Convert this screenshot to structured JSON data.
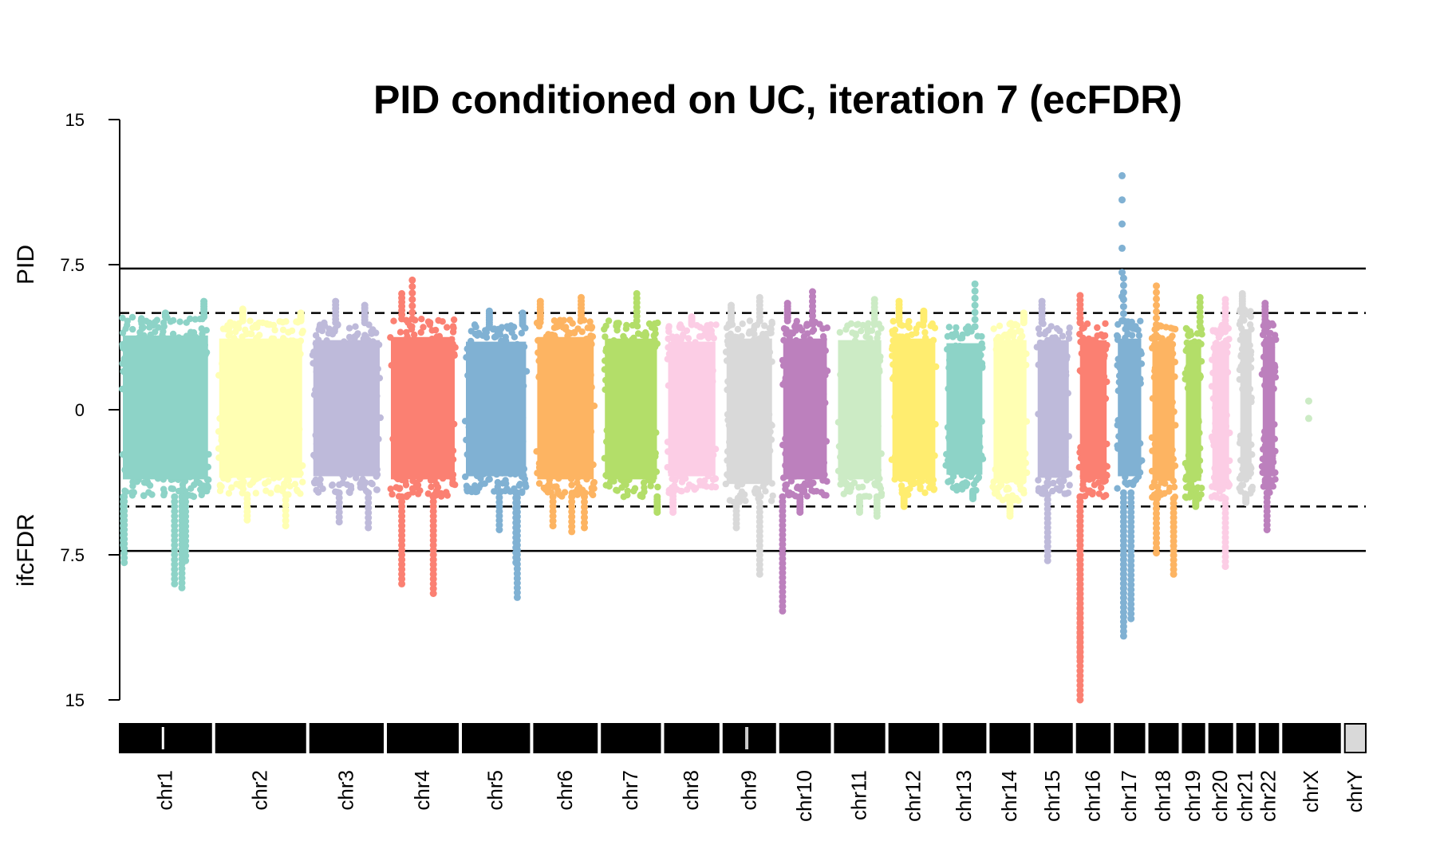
{
  "chart_data": {
    "type": "scatter",
    "title": "PID conditioned on UC, iteration 7 (ecFDR)",
    "ylabel_top": "PID",
    "ylabel_bottom": "ifcFDR",
    "yticks": [
      {
        "value": 15,
        "label": "15"
      },
      {
        "value": 7.5,
        "label": "7.5"
      },
      {
        "value": 0,
        "label": "0"
      },
      {
        "value": -7.5,
        "label": "7.5"
      },
      {
        "value": -15,
        "label": "15"
      }
    ],
    "ylim": [
      -15,
      15
    ],
    "thresholds": {
      "solid": [
        7.3,
        -7.3
      ],
      "dashed": [
        5,
        -5
      ]
    },
    "palette": [
      "#8dd3c7",
      "#ffffb3",
      "#bebada",
      "#fb8072",
      "#80b1d3",
      "#fdb462",
      "#b3de69",
      "#fccde5",
      "#d9d9d9",
      "#bc80bd",
      "#ccebc5",
      "#ffed6f"
    ],
    "chromosomes": [
      {
        "name": "chr1",
        "size": 249,
        "color": "#8dd3c7",
        "top": 4.8,
        "bottom": 4.5,
        "peaks_up": [
          [
            0.5,
            5.0
          ],
          [
            0.92,
            5.6
          ]
        ],
        "peaks_down": [
          [
            0.04,
            -7.0
          ],
          [
            0.05,
            -7.9
          ],
          [
            0.6,
            -9.0
          ],
          [
            0.68,
            -9.2
          ],
          [
            0.72,
            -7.8
          ]
        ]
      },
      {
        "name": "chr2",
        "size": 243,
        "color": "#ffffb3",
        "top": 4.6,
        "bottom": 4.4,
        "peaks_up": [
          [
            0.3,
            5.2
          ],
          [
            0.95,
            5.0
          ]
        ],
        "peaks_down": [
          [
            0.35,
            -5.7
          ],
          [
            0.78,
            -6.0
          ]
        ]
      },
      {
        "name": "chr3",
        "size": 198,
        "color": "#bebada",
        "top": 4.5,
        "bottom": 4.3,
        "peaks_up": [
          [
            0.35,
            5.6
          ],
          [
            0.75,
            5.4
          ]
        ],
        "peaks_down": [
          [
            0.4,
            -5.8
          ],
          [
            0.8,
            -6.1
          ]
        ]
      },
      {
        "name": "chr4",
        "size": 191,
        "color": "#fb8072",
        "top": 4.7,
        "bottom": 4.5,
        "peaks_up": [
          [
            0.2,
            6.0
          ],
          [
            0.35,
            6.7
          ]
        ],
        "peaks_down": [
          [
            0.2,
            -9.0
          ],
          [
            0.65,
            -9.5
          ]
        ]
      },
      {
        "name": "chr5",
        "size": 181,
        "color": "#80b1d3",
        "top": 4.4,
        "bottom": 4.3,
        "peaks_up": [
          [
            0.4,
            5.1
          ],
          [
            0.9,
            5.0
          ]
        ],
        "peaks_down": [
          [
            0.55,
            -6.2
          ],
          [
            0.8,
            -7.9
          ],
          [
            0.82,
            -9.7
          ]
        ]
      },
      {
        "name": "chr6",
        "size": 171,
        "color": "#fdb462",
        "top": 4.7,
        "bottom": 4.5,
        "peaks_up": [
          [
            0.1,
            5.6
          ],
          [
            0.75,
            5.8
          ]
        ],
        "peaks_down": [
          [
            0.3,
            -6.0
          ],
          [
            0.6,
            -6.3
          ],
          [
            0.8,
            -6.1
          ]
        ]
      },
      {
        "name": "chr7",
        "size": 159,
        "color": "#b3de69",
        "top": 4.6,
        "bottom": 4.5,
        "peaks_up": [
          [
            0.6,
            6.0
          ]
        ],
        "peaks_down": [
          [
            0.95,
            -5.3
          ]
        ]
      },
      {
        "name": "chr8",
        "size": 146,
        "color": "#fccde5",
        "top": 4.4,
        "bottom": 4.3,
        "peaks_up": [
          [
            0.5,
            4.8
          ]
        ],
        "peaks_down": [
          [
            0.15,
            -5.3
          ]
        ]
      },
      {
        "name": "chr9",
        "size": 141,
        "color": "#d9d9d9",
        "top": 4.6,
        "bottom": 4.8,
        "peaks_up": [
          [
            0.15,
            5.4
          ],
          [
            0.7,
            5.8
          ]
        ],
        "peaks_down": [
          [
            0.25,
            -6.1
          ],
          [
            0.7,
            -8.5
          ]
        ]
      },
      {
        "name": "chr10",
        "size": 136,
        "color": "#bc80bd",
        "top": 4.6,
        "bottom": 4.5,
        "peaks_up": [
          [
            0.15,
            5.5
          ],
          [
            0.65,
            6.1
          ]
        ],
        "peaks_down": [
          [
            0.05,
            -10.4
          ],
          [
            0.4,
            -5.3
          ]
        ]
      },
      {
        "name": "chr11",
        "size": 135,
        "color": "#ccebc5",
        "top": 4.5,
        "bottom": 4.5,
        "peaks_up": [
          [
            0.8,
            5.7
          ]
        ],
        "peaks_down": [
          [
            0.5,
            -5.3
          ],
          [
            0.85,
            -5.5
          ]
        ]
      },
      {
        "name": "chr12",
        "size": 134,
        "color": "#ffed6f",
        "top": 4.6,
        "bottom": 4.5,
        "peaks_up": [
          [
            0.2,
            5.6
          ],
          [
            0.7,
            5.1
          ]
        ],
        "peaks_down": [
          [
            0.3,
            -5.0
          ]
        ]
      },
      {
        "name": "chr13",
        "size": 115,
        "color": "#8dd3c7",
        "top": 4.3,
        "bottom": 4.2,
        "peaks_up": [
          [
            0.75,
            6.5
          ]
        ],
        "peaks_down": [
          [
            0.7,
            -4.6
          ]
        ]
      },
      {
        "name": "chr14",
        "size": 107,
        "color": "#ffffb3",
        "top": 4.5,
        "bottom": 4.7,
        "peaks_up": [
          [
            0.85,
            5.0
          ]
        ],
        "peaks_down": [
          [
            0.5,
            -5.5
          ]
        ]
      },
      {
        "name": "chr15",
        "size": 102,
        "color": "#bebada",
        "top": 4.5,
        "bottom": 4.4,
        "peaks_up": [
          [
            0.2,
            5.6
          ]
        ],
        "peaks_down": [
          [
            0.35,
            -7.8
          ]
        ]
      },
      {
        "name": "chr16",
        "size": 90,
        "color": "#fb8072",
        "top": 4.5,
        "bottom": 4.5,
        "peaks_up": [
          [
            0.1,
            5.9
          ]
        ],
        "peaks_down": [
          [
            0.1,
            -12.8
          ],
          [
            0.1,
            -15.0
          ]
        ]
      },
      {
        "name": "chr17",
        "size": 81,
        "color": "#80b1d3",
        "top": 4.6,
        "bottom": 4.3,
        "peaks_up": [
          [
            0.25,
            12.1
          ],
          [
            0.3,
            6.8
          ]
        ],
        "peaks_down": [
          [
            0.3,
            -11.7
          ],
          [
            0.55,
            -10.8
          ]
        ]
      },
      {
        "name": "chr18",
        "size": 78,
        "color": "#fdb462",
        "top": 4.4,
        "bottom": 4.6,
        "peaks_up": [
          [
            0.25,
            6.4
          ]
        ],
        "peaks_down": [
          [
            0.25,
            -7.4
          ],
          [
            0.85,
            -8.5
          ]
        ]
      },
      {
        "name": "chr19",
        "size": 59,
        "color": "#b3de69",
        "top": 4.3,
        "bottom": 4.6,
        "peaks_up": [
          [
            0.8,
            5.8
          ]
        ],
        "peaks_down": [
          [
            0.6,
            -5.0
          ]
        ]
      },
      {
        "name": "chr20",
        "size": 63,
        "color": "#fccde5",
        "top": 4.4,
        "bottom": 4.6,
        "peaks_up": [
          [
            0.7,
            5.7
          ]
        ],
        "peaks_down": [
          [
            0.7,
            -8.1
          ]
        ]
      },
      {
        "name": "chr21",
        "size": 48,
        "color": "#d9d9d9",
        "top": 5.2,
        "bottom": 4.5,
        "peaks_up": [
          [
            0.3,
            6.0
          ]
        ],
        "peaks_down": [
          [
            0.5,
            -4.8
          ]
        ]
      },
      {
        "name": "chr22",
        "size": 51,
        "color": "#bc80bd",
        "top": 4.5,
        "bottom": 4.3,
        "peaks_up": [
          [
            0.3,
            5.5
          ]
        ],
        "peaks_down": [
          [
            0.4,
            -6.2
          ]
        ]
      },
      {
        "name": "chrX",
        "size": 155,
        "color": "#ccebc5",
        "top": 0.5,
        "bottom": 0.5,
        "peaks_up": [],
        "peaks_down": []
      },
      {
        "name": "chrY",
        "size": 57,
        "color": "#ffed6f",
        "top": 0,
        "bottom": 0,
        "peaks_up": [],
        "peaks_down": []
      }
    ]
  }
}
